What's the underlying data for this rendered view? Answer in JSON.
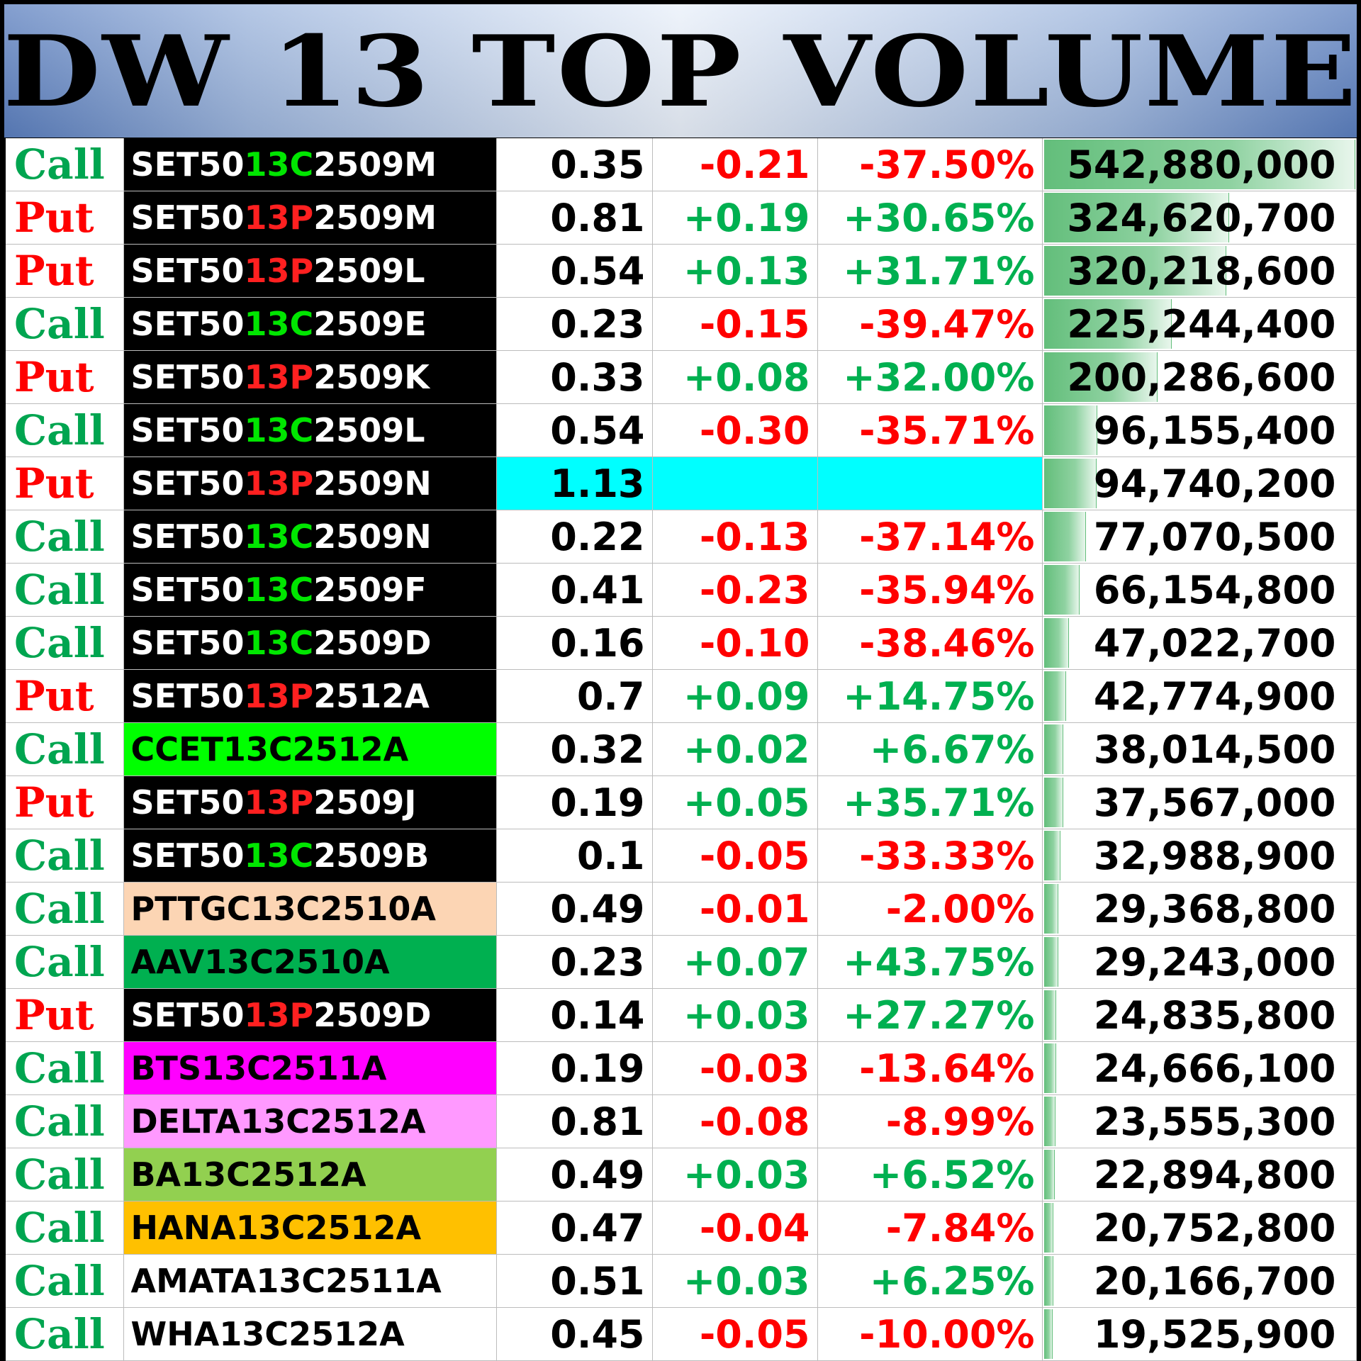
{
  "title": "DW 13 TOP VOLUME",
  "colors": {
    "call": "#00a550",
    "put": "#ff0000",
    "up": "#00b050",
    "down": "#ff0000",
    "highlight": "#00ffff",
    "bar": "#63be7b"
  },
  "max_volume": 542880000,
  "rows": [
    {
      "type": "Call",
      "name": {
        "pre": "SET50",
        "mid": "13C",
        "post": "2509M"
      },
      "name_bg": "#000000",
      "last": "0.35",
      "change": "-0.21",
      "pct": "-37.50%",
      "volume": "542,880,000",
      "vol_value": 542880000
    },
    {
      "type": "Put",
      "name": {
        "pre": "SET50",
        "mid": "13P",
        "post": "2509M"
      },
      "name_bg": "#000000",
      "last": "0.81",
      "change": "+0.19",
      "pct": "+30.65%",
      "volume": "324,620,700",
      "vol_value": 324620700
    },
    {
      "type": "Put",
      "name": {
        "pre": "SET50",
        "mid": "13P",
        "post": "2509L"
      },
      "name_bg": "#000000",
      "last": "0.54",
      "change": "+0.13",
      "pct": "+31.71%",
      "volume": "320,218,600",
      "vol_value": 320218600
    },
    {
      "type": "Call",
      "name": {
        "pre": "SET50",
        "mid": "13C",
        "post": "2509E"
      },
      "name_bg": "#000000",
      "last": "0.23",
      "change": "-0.15",
      "pct": "-39.47%",
      "volume": "225,244,400",
      "vol_value": 225244400
    },
    {
      "type": "Put",
      "name": {
        "pre": "SET50",
        "mid": "13P",
        "post": "2509K"
      },
      "name_bg": "#000000",
      "last": "0.33",
      "change": "+0.08",
      "pct": "+32.00%",
      "volume": "200,286,600",
      "vol_value": 200286600
    },
    {
      "type": "Call",
      "name": {
        "pre": "SET50",
        "mid": "13C",
        "post": "2509L"
      },
      "name_bg": "#000000",
      "last": "0.54",
      "change": "-0.30",
      "pct": "-35.71%",
      "volume": "96,155,400",
      "vol_value": 96155400
    },
    {
      "type": "Put",
      "name": {
        "pre": "SET50",
        "mid": "13P",
        "post": "2509N"
      },
      "name_bg": "#000000",
      "last": "1.13",
      "change": "",
      "pct": "",
      "volume": "94,740,200",
      "vol_value": 94740200,
      "highlight": true
    },
    {
      "type": "Call",
      "name": {
        "pre": "SET50",
        "mid": "13C",
        "post": "2509N"
      },
      "name_bg": "#000000",
      "last": "0.22",
      "change": "-0.13",
      "pct": "-37.14%",
      "volume": "77,070,500",
      "vol_value": 77070500
    },
    {
      "type": "Call",
      "name": {
        "pre": "SET50",
        "mid": "13C",
        "post": "2509F"
      },
      "name_bg": "#000000",
      "last": "0.41",
      "change": "-0.23",
      "pct": "-35.94%",
      "volume": "66,154,800",
      "vol_value": 66154800
    },
    {
      "type": "Call",
      "name": {
        "pre": "SET50",
        "mid": "13C",
        "post": "2509D"
      },
      "name_bg": "#000000",
      "last": "0.16",
      "change": "-0.10",
      "pct": "-38.46%",
      "volume": "47,022,700",
      "vol_value": 47022700
    },
    {
      "type": "Put",
      "name": {
        "pre": "SET50",
        "mid": "13P",
        "post": "2512A"
      },
      "name_bg": "#000000",
      "last": "0.7",
      "change": "+0.09",
      "pct": "+14.75%",
      "volume": "42,774,900",
      "vol_value": 42774900
    },
    {
      "type": "Call",
      "name": {
        "pre": "CCET13C2512A",
        "mid": "",
        "post": ""
      },
      "name_bg": "#00ff00",
      "name_color": "#000000",
      "last": "0.32",
      "change": "+0.02",
      "pct": "+6.67%",
      "volume": "38,014,500",
      "vol_value": 38014500
    },
    {
      "type": "Put",
      "name": {
        "pre": "SET50",
        "mid": "13P",
        "post": "2509J"
      },
      "name_bg": "#000000",
      "last": "0.19",
      "change": "+0.05",
      "pct": "+35.71%",
      "volume": "37,567,000",
      "vol_value": 37567000
    },
    {
      "type": "Call",
      "name": {
        "pre": "SET50",
        "mid": "13C",
        "post": "2509B"
      },
      "name_bg": "#000000",
      "last": "0.1",
      "change": "-0.05",
      "pct": "-33.33%",
      "volume": "32,988,900",
      "vol_value": 32988900
    },
    {
      "type": "Call",
      "name": {
        "pre": "PTTGC13C2510A",
        "mid": "",
        "post": ""
      },
      "name_bg": "#fcd5b4",
      "name_color": "#000000",
      "last": "0.49",
      "change": "-0.01",
      "pct": "-2.00%",
      "volume": "29,368,800",
      "vol_value": 29368800
    },
    {
      "type": "Call",
      "name": {
        "pre": "AAV13C2510A",
        "mid": "",
        "post": ""
      },
      "name_bg": "#00b050",
      "name_color": "#000000",
      "last": "0.23",
      "change": "+0.07",
      "pct": "+43.75%",
      "volume": "29,243,000",
      "vol_value": 29243000
    },
    {
      "type": "Put",
      "name": {
        "pre": "SET50",
        "mid": "13P",
        "post": "2509D"
      },
      "name_bg": "#000000",
      "last": "0.14",
      "change": "+0.03",
      "pct": "+27.27%",
      "volume": "24,835,800",
      "vol_value": 24835800
    },
    {
      "type": "Call",
      "name": {
        "pre": "BTS13C2511A",
        "mid": "",
        "post": ""
      },
      "name_bg": "#ff00ff",
      "name_color": "#000000",
      "last": "0.19",
      "change": "-0.03",
      "pct": "-13.64%",
      "volume": "24,666,100",
      "vol_value": 24666100
    },
    {
      "type": "Call",
      "name": {
        "pre": "DELTA13C2512A",
        "mid": "",
        "post": ""
      },
      "name_bg": "#ff99ff",
      "name_color": "#000000",
      "last": "0.81",
      "change": "-0.08",
      "pct": "-8.99%",
      "volume": "23,555,300",
      "vol_value": 23555300
    },
    {
      "type": "Call",
      "name": {
        "pre": "BA13C2512A",
        "mid": "",
        "post": ""
      },
      "name_bg": "#92d050",
      "name_color": "#000000",
      "last": "0.49",
      "change": "+0.03",
      "pct": "+6.52%",
      "volume": "22,894,800",
      "vol_value": 22894800
    },
    {
      "type": "Call",
      "name": {
        "pre": "HANA13C2512A",
        "mid": "",
        "post": ""
      },
      "name_bg": "#ffc000",
      "name_color": "#000000",
      "last": "0.47",
      "change": "-0.04",
      "pct": "-7.84%",
      "volume": "20,752,800",
      "vol_value": 20752800
    },
    {
      "type": "Call",
      "name": {
        "pre": "AMATA13C2511A",
        "mid": "",
        "post": ""
      },
      "name_bg": "#ffffff",
      "name_color": "#000000",
      "last": "0.51",
      "change": "+0.03",
      "pct": "+6.25%",
      "volume": "20,166,700",
      "vol_value": 20166700
    },
    {
      "type": "Call",
      "name": {
        "pre": "WHA13C2512A",
        "mid": "",
        "post": ""
      },
      "name_bg": "#ffffff",
      "name_color": "#000000",
      "last": "0.45",
      "change": "-0.05",
      "pct": "-10.00%",
      "volume": "19,525,900",
      "vol_value": 19525900
    }
  ]
}
